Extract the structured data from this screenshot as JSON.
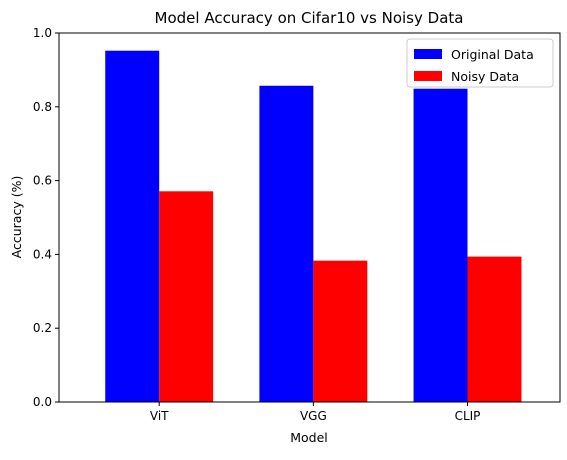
{
  "chart_data": {
    "type": "bar",
    "title": "Model Accuracy on Cifar10 vs Noisy Data",
    "xlabel": "Model",
    "ylabel": "Accuracy (%)",
    "categories": [
      "ViT",
      "VGG",
      "CLIP"
    ],
    "series": [
      {
        "name": "Original Data",
        "color": "#0000ff",
        "values": [
          0.952,
          0.857,
          0.849
        ]
      },
      {
        "name": "Noisy Data",
        "color": "#ff0000",
        "values": [
          0.571,
          0.383,
          0.394
        ]
      }
    ],
    "ylim": [
      0,
      1.0
    ],
    "yticks": [
      "0.0",
      "0.2",
      "0.4",
      "0.6",
      "0.8",
      "1.0"
    ],
    "grid": false,
    "legend_position": "top-right"
  }
}
